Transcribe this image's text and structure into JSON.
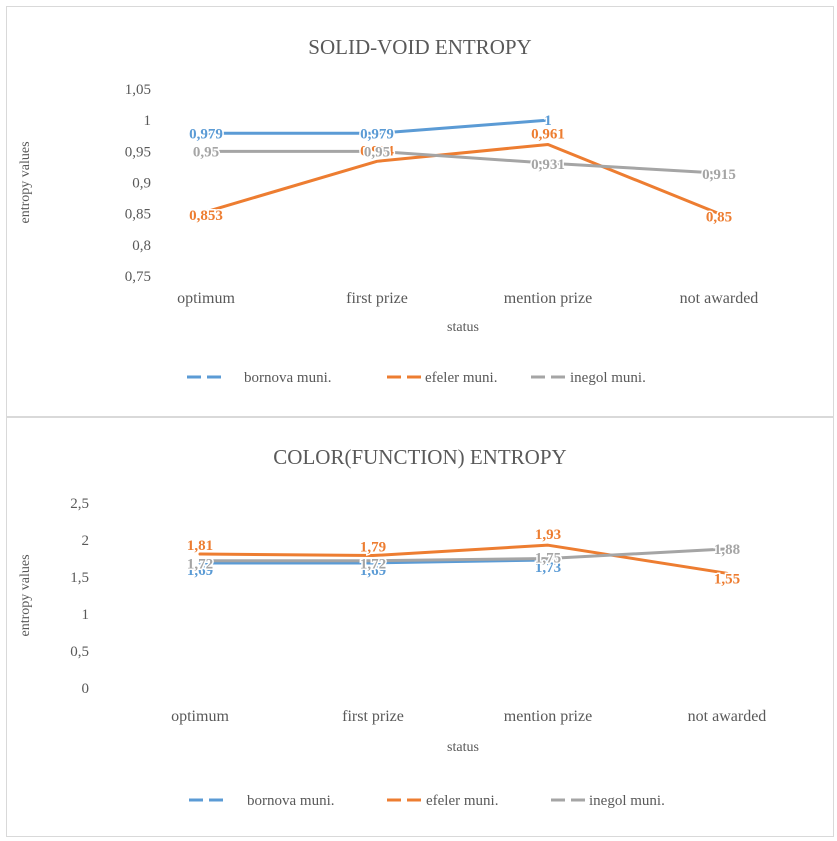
{
  "chart_data": [
    {
      "type": "line",
      "title": "SOLID-VOID ENTROPY",
      "xlabel": "status",
      "ylabel": "entropy values",
      "categories": [
        "optimum",
        "first prize",
        "mention prize",
        "not awarded"
      ],
      "ylim": [
        0.75,
        1.05
      ],
      "yticks": [
        "0,75",
        "0,8",
        "0,85",
        "0,9",
        "0,95",
        "1",
        "1,05"
      ],
      "legend_position": "bottom",
      "grid": false,
      "series": [
        {
          "name": "bornova muni.",
          "color": "#5b9bd5",
          "values": [
            0.979,
            0.979,
            1,
            null
          ],
          "labels": [
            "0,979",
            "0,979",
            "1",
            ""
          ]
        },
        {
          "name": "efeler muni.",
          "color": "#ed7d31",
          "values": [
            0.853,
            0.934,
            0.961,
            0.85
          ],
          "labels": [
            "0,853",
            "0,934",
            "0,961",
            "0,85"
          ]
        },
        {
          "name": "inegol muni.",
          "color": "#a5a5a5",
          "values": [
            0.95,
            0.95,
            0.931,
            0.915
          ],
          "labels": [
            "0,95",
            "0,95",
            "0,931",
            "0,915"
          ]
        }
      ]
    },
    {
      "type": "line",
      "title": "COLOR(FUNCTION) ENTROPY",
      "xlabel": "status",
      "ylabel": "entropy values",
      "categories": [
        "optimum",
        "first prize",
        "mention prize",
        "not awarded"
      ],
      "ylim": [
        0,
        2.5
      ],
      "yticks": [
        "0",
        "0,5",
        "1",
        "1,5",
        "2",
        "2,5"
      ],
      "legend_position": "bottom",
      "grid": false,
      "series": [
        {
          "name": "bornova muni.",
          "color": "#5b9bd5",
          "values": [
            1.69,
            1.69,
            1.73,
            null
          ],
          "labels": [
            "1,69",
            "1,69",
            "1,73",
            ""
          ]
        },
        {
          "name": "efeler muni.",
          "color": "#ed7d31",
          "values": [
            1.81,
            1.79,
            1.93,
            1.55
          ],
          "labels": [
            "1,81",
            "1,79",
            "1,93",
            "1,55"
          ]
        },
        {
          "name": "inegol muni.",
          "color": "#a5a5a5",
          "values": [
            1.72,
            1.72,
            1.75,
            1.88
          ],
          "labels": [
            "1,72",
            "1,72",
            "1,75",
            "1,88"
          ]
        }
      ]
    }
  ]
}
